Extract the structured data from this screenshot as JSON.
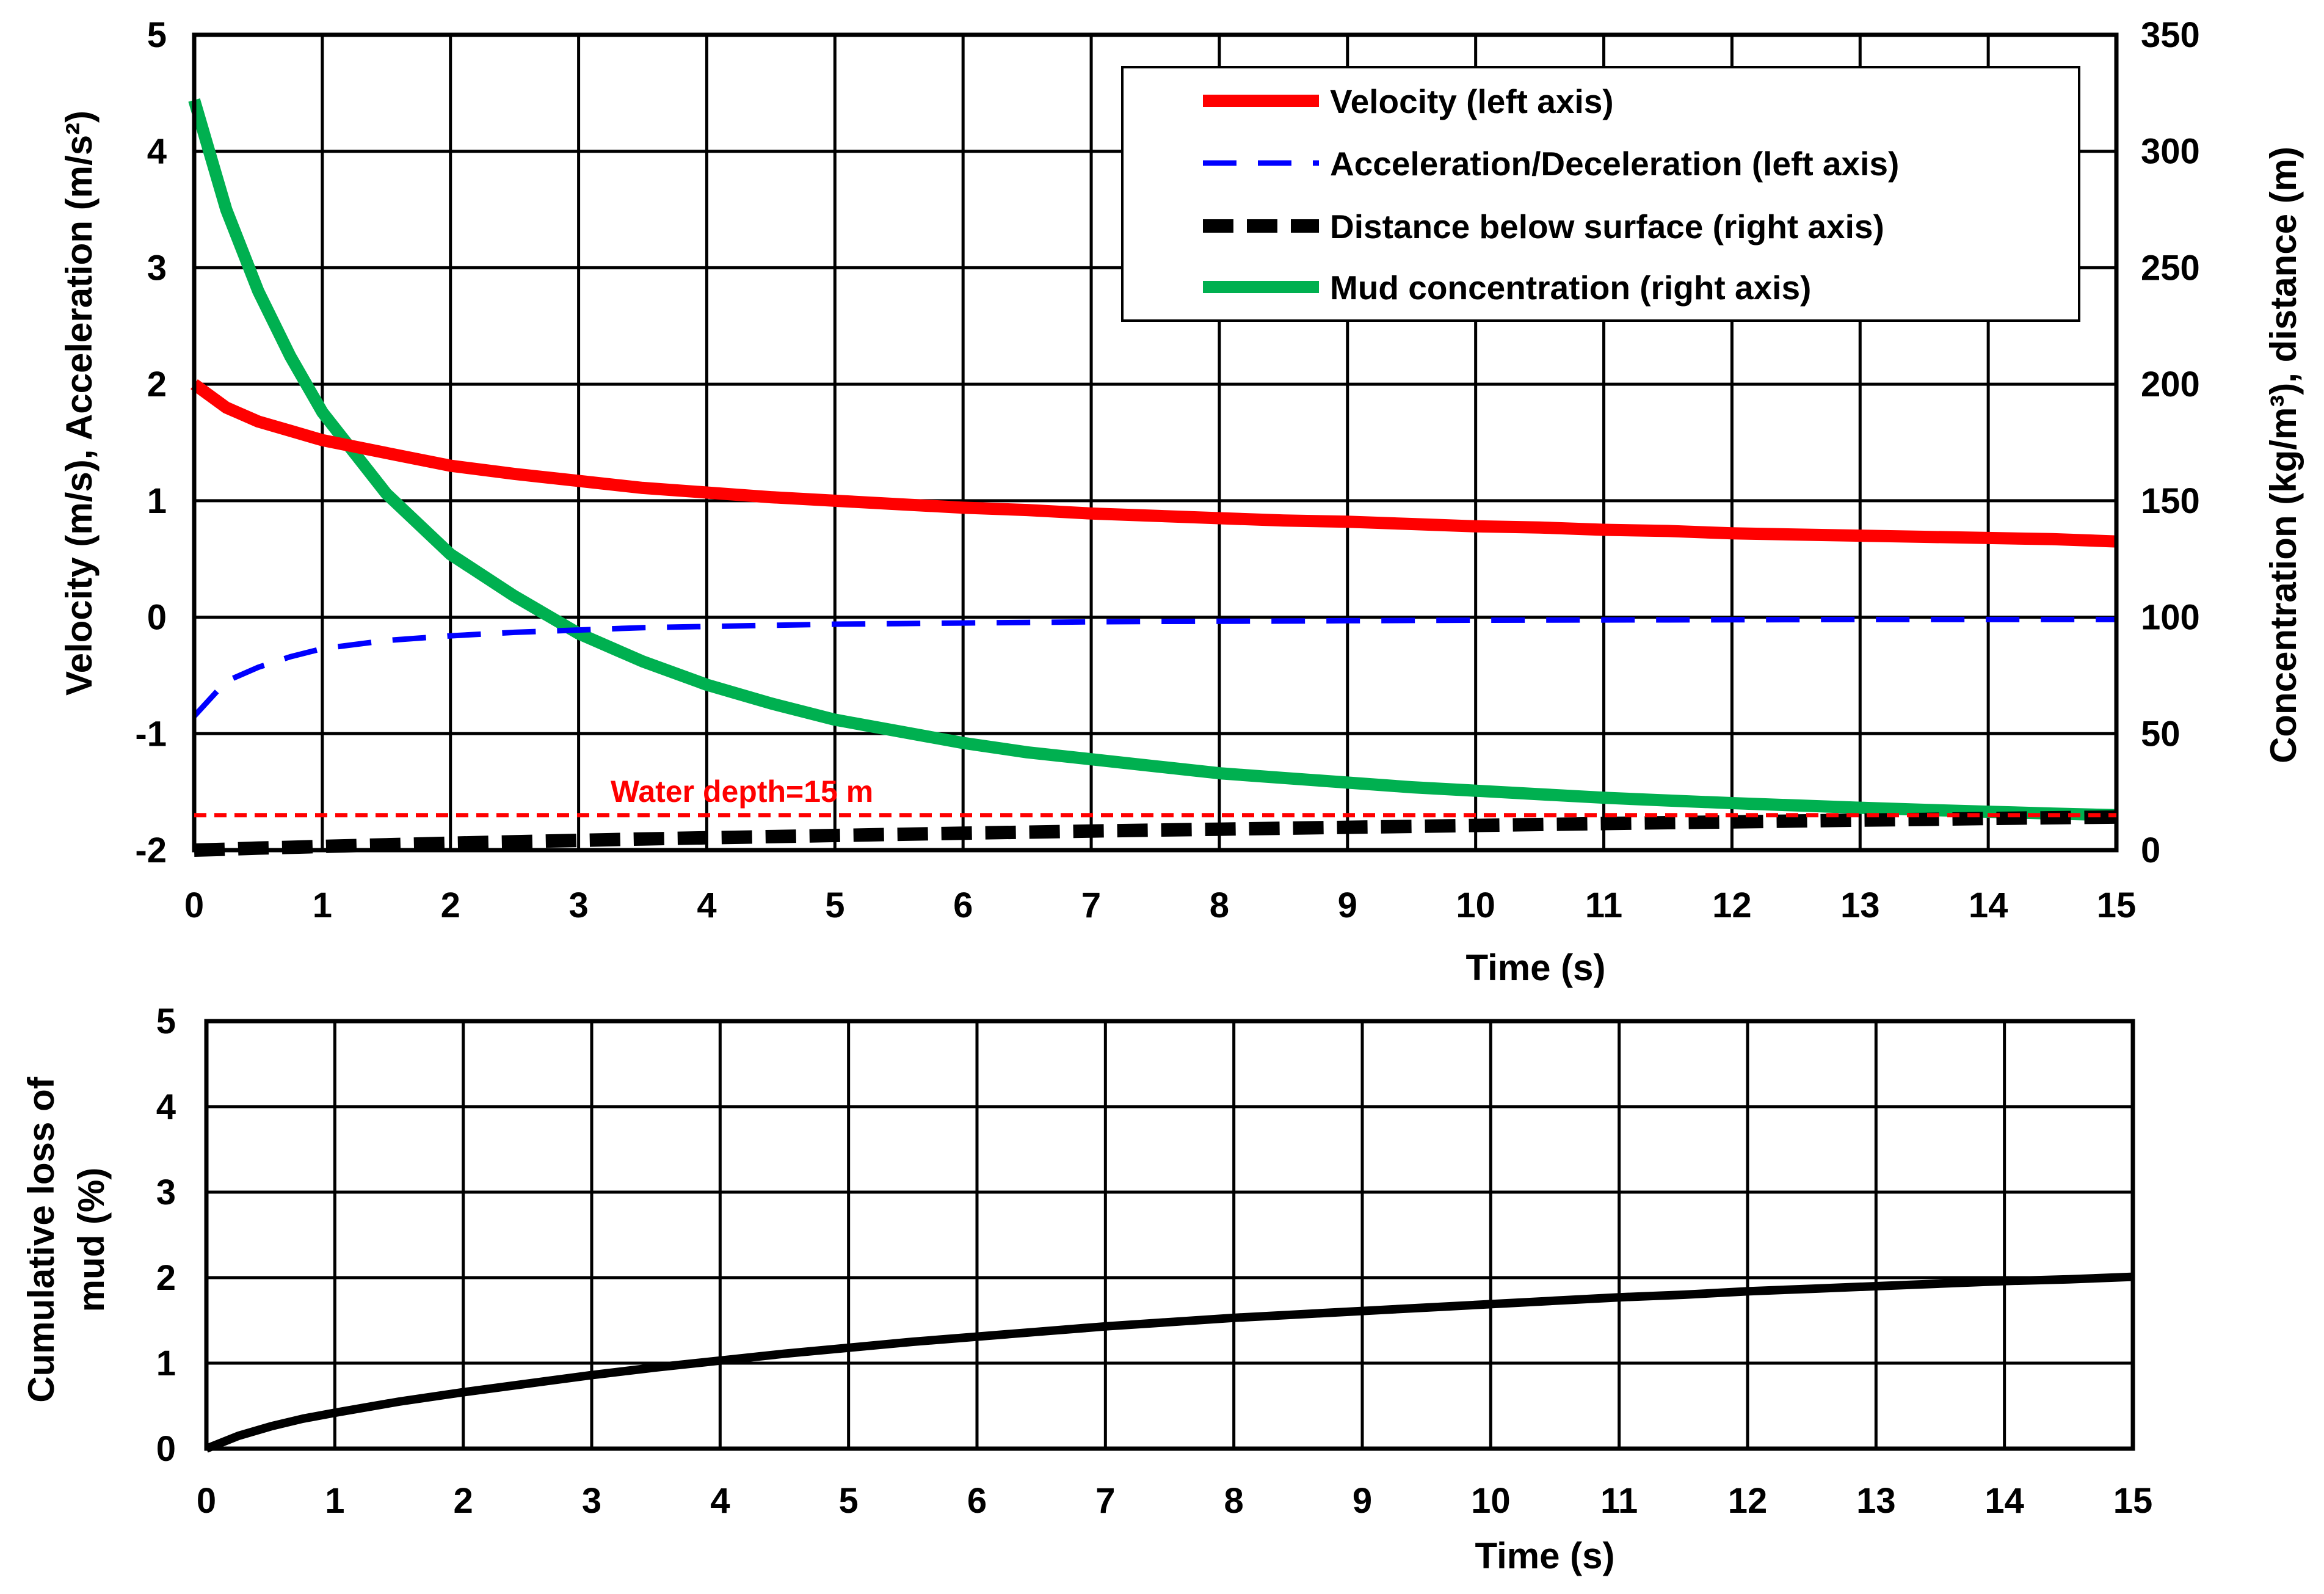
{
  "chart_data": [
    {
      "type": "line",
      "x": [
        0,
        0.25,
        0.5,
        0.75,
        1,
        1.5,
        2,
        2.5,
        3,
        3.5,
        4,
        4.5,
        5,
        5.5,
        6,
        6.5,
        7,
        7.5,
        8,
        8.5,
        9,
        9.5,
        10,
        10.5,
        11,
        11.5,
        12,
        12.5,
        13,
        13.5,
        14,
        14.5,
        15
      ],
      "xlabel": "Time (s)",
      "xlim": [
        0,
        15
      ],
      "xticks": [
        "0",
        "1",
        "2",
        "3",
        "4",
        "5",
        "6",
        "7",
        "8",
        "9",
        "10",
        "11",
        "12",
        "13",
        "14",
        "15"
      ],
      "ylabel_left": "Velocity (m/s), Acceleration (m/s²)",
      "ylim_left": [
        -2,
        5
      ],
      "yticks_left": [
        "-2",
        "-1",
        "0",
        "1",
        "2",
        "3",
        "4",
        "5"
      ],
      "ylabel_right": "Concentration (kg/m³), distance (m)",
      "ylim_right": [
        0,
        350
      ],
      "yticks_right": [
        "0",
        "50",
        "100",
        "150",
        "200",
        "250",
        "300",
        "350"
      ],
      "grid": true,
      "legend_position": "top-right",
      "series": [
        {
          "name": "Velocity (left axis)",
          "axis": "left",
          "color": "#ff0000",
          "style": "solid",
          "values": [
            2.0,
            1.8,
            1.68,
            1.6,
            1.52,
            1.41,
            1.3,
            1.23,
            1.17,
            1.11,
            1.07,
            1.03,
            1.0,
            0.97,
            0.94,
            0.92,
            0.89,
            0.87,
            0.85,
            0.83,
            0.82,
            0.8,
            0.78,
            0.77,
            0.75,
            0.74,
            0.72,
            0.71,
            0.7,
            0.69,
            0.68,
            0.67,
            0.65
          ]
        },
        {
          "name": "Acceleration/Deceleration (left axis)",
          "axis": "left",
          "color": "#0000ff",
          "style": "dash",
          "values": [
            -0.85,
            -0.55,
            -0.43,
            -0.34,
            -0.27,
            -0.2,
            -0.16,
            -0.13,
            -0.11,
            -0.09,
            -0.08,
            -0.07,
            -0.06,
            -0.055,
            -0.05,
            -0.045,
            -0.04,
            -0.037,
            -0.035,
            -0.033,
            -0.03,
            -0.028,
            -0.026,
            -0.025,
            -0.024,
            -0.023,
            -0.022,
            -0.021,
            -0.02,
            -0.02,
            -0.02,
            -0.02,
            -0.02
          ]
        },
        {
          "name": "Distance below surface (right axis)",
          "axis": "right",
          "color": "#000000",
          "style": "dash-thick",
          "values": [
            0,
            0.4,
            0.9,
            1.2,
            1.6,
            2.3,
            3.0,
            3.6,
            4.2,
            4.8,
            5.3,
            5.8,
            6.3,
            6.8,
            7.3,
            7.7,
            8.2,
            8.6,
            9.0,
            9.4,
            9.8,
            10.2,
            10.6,
            11.0,
            11.4,
            11.8,
            12.1,
            12.5,
            12.9,
            13.2,
            13.6,
            13.9,
            14.2
          ]
        },
        {
          "name": "Mud concentration (right axis)",
          "axis": "right",
          "color": "#00b050",
          "style": "solid",
          "values": [
            322,
            275,
            240,
            212,
            188,
            153,
            127,
            109,
            93,
            81,
            71,
            63,
            56,
            51,
            46,
            42,
            39,
            36,
            33,
            31,
            29,
            27,
            25.5,
            24,
            22.5,
            21.3,
            20.2,
            19.2,
            18.2,
            17.3,
            16.5,
            15.7,
            15
          ]
        }
      ],
      "annotation": {
        "text": "Water depth=15 m",
        "value": 15,
        "axis": "right",
        "color": "#ff0000"
      }
    },
    {
      "type": "line",
      "x": [
        0,
        0.25,
        0.5,
        0.75,
        1,
        1.5,
        2,
        2.5,
        3,
        3.5,
        4,
        4.5,
        5,
        5.5,
        6,
        6.5,
        7,
        7.5,
        8,
        8.5,
        9,
        9.5,
        10,
        10.5,
        11,
        11.5,
        12,
        12.5,
        13,
        13.5,
        14,
        14.5,
        15
      ],
      "xlabel": "Time (s)",
      "xlim": [
        0,
        15
      ],
      "xticks": [
        "0",
        "1",
        "2",
        "3",
        "4",
        "5",
        "6",
        "7",
        "8",
        "9",
        "10",
        "11",
        "12",
        "13",
        "14",
        "15"
      ],
      "ylabel_line1": "Cumulative loss  of",
      "ylabel_line2": "mud (%)",
      "ylim": [
        0,
        5
      ],
      "yticks": [
        "0",
        "1",
        "2",
        "3",
        "4",
        "5"
      ],
      "grid": true,
      "series": [
        {
          "name": "Cumulative loss of mud",
          "color": "#000000",
          "style": "solid",
          "values": [
            0,
            0.15,
            0.26,
            0.35,
            0.42,
            0.55,
            0.66,
            0.76,
            0.86,
            0.95,
            1.03,
            1.11,
            1.18,
            1.25,
            1.31,
            1.37,
            1.43,
            1.48,
            1.53,
            1.57,
            1.61,
            1.65,
            1.69,
            1.73,
            1.77,
            1.8,
            1.84,
            1.87,
            1.9,
            1.93,
            1.96,
            1.98,
            2.01
          ]
        }
      ]
    }
  ]
}
